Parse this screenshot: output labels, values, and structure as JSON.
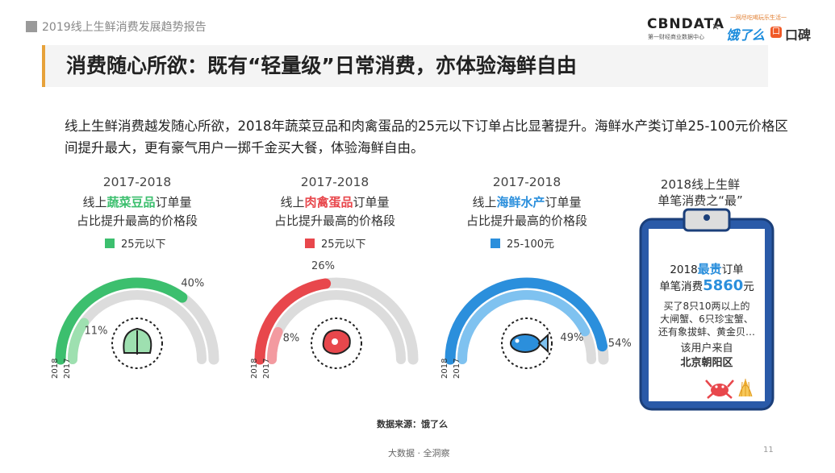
{
  "report_title": "2019线上生鲜消费发展趋势报告",
  "brand": {
    "cbn": "CBNDATA",
    "cbn_sub": "第一财经商业数据中心",
    "x": "×",
    "slogan": "一网尽吃喝玩乐生活一",
    "eleme": "饿了么",
    "koubei_mark": "口",
    "koubei": "口碑"
  },
  "headline": "消费随心所欲：既有“轻量级”日常消费，亦体验海鲜自由",
  "intro": "线上生鲜消费越发随心所欲，2018年蔬菜豆品和肉禽蛋品的25元以下订单占比显著提升。海鲜水产类订单25-100元价格区间提升最大，更有豪气用户一掷千金买大餐，体验海鲜自由。",
  "colors": {
    "veg": "#3cbf6e",
    "veg_light": "#9ee0b0",
    "meat": "#e8474c",
    "meat_light": "#f39aa0",
    "sea": "#2b8fdc",
    "sea_light": "#7fc2f0",
    "grey": "#dcdcdc",
    "clip": "#2a5aa8"
  },
  "chart_data": [
    {
      "type": "donut-gauge",
      "period": "2017-2018",
      "line_pre": "线上",
      "category": "蔬菜豆品",
      "line_post": "订单量",
      "line3": "占比提升最高的价格段",
      "legend": "25元以下",
      "icon": "vegetable-icon",
      "years": [
        "2018",
        "2017"
      ],
      "values": [
        40,
        11
      ],
      "labels": [
        "40%",
        "11%"
      ],
      "max": 100
    },
    {
      "type": "donut-gauge",
      "period": "2017-2018",
      "line_pre": "线上",
      "category": "肉禽蛋品",
      "line_post": "订单量",
      "line3": "占比提升最高的价格段",
      "legend": "25元以下",
      "icon": "meat-icon",
      "years": [
        "2018",
        "2017"
      ],
      "values": [
        26,
        8
      ],
      "labels": [
        "26%",
        "8%"
      ],
      "max": 100
    },
    {
      "type": "donut-gauge",
      "period": "2017-2018",
      "line_pre": "线上",
      "category": "海鲜水产",
      "line_post": "订单量",
      "line3": "占比提升最高的价格段",
      "legend": "25-100元",
      "icon": "fish-icon",
      "years": [
        "2018",
        "2017"
      ],
      "values": [
        54,
        49
      ],
      "labels": [
        "54%",
        "49%"
      ],
      "max": 100
    }
  ],
  "clipboard": {
    "title1": "2018线上生鲜",
    "title2": "单笔消费之“最”",
    "l1_pre": "2018",
    "l1_hl": "最贵",
    "l1_post": "订单",
    "l2_pre": "单笔消费",
    "l2_num": "5860",
    "l2_post": "元",
    "l3": "买了8只10两以上的",
    "l4": "大闸蟹、6只珍宝蟹、",
    "l5": "还有象拔蚌、黄金贝…",
    "l6": "该用户来自",
    "l7": "北京朝阳区"
  },
  "source": "数据来源：饿了么",
  "footer": "大数据 · 全洞察",
  "page": "11"
}
